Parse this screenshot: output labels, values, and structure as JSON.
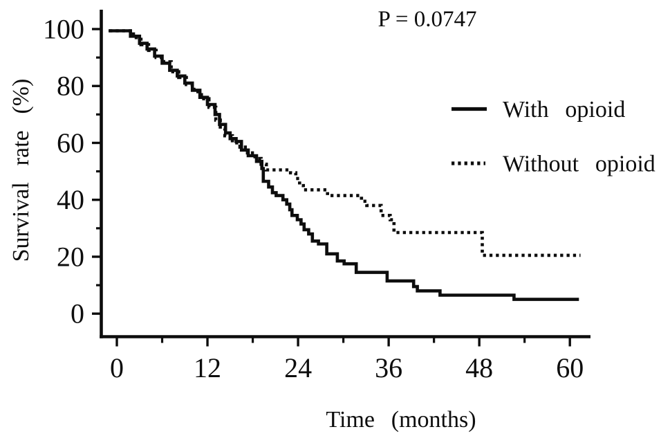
{
  "figure": {
    "p_value": "P = 0.0747",
    "x_axis": {
      "label": "Time (months)"
    },
    "y_axis": {
      "label": "Survival rate (%)"
    },
    "legend": [
      {
        "label": "With opioid",
        "style": "solid"
      },
      {
        "label": "Without opioid",
        "style": "dotted"
      }
    ]
  },
  "chart_data": {
    "type": "line",
    "subtype": "kaplan-meier-step",
    "title": "",
    "annotation": "P = 0.0747",
    "xlabel": "Time (months)",
    "ylabel": "Survival rate (%)",
    "xlim": [
      0,
      62
    ],
    "ylim": [
      0,
      100
    ],
    "x_ticks": [
      0,
      12,
      24,
      36,
      48,
      60
    ],
    "x_minor_ticks": [
      6,
      18,
      30,
      42,
      54
    ],
    "y_ticks": [
      0,
      20,
      40,
      60,
      80,
      100
    ],
    "y_minor_ticks": [
      10,
      30,
      50,
      70,
      90
    ],
    "grid": false,
    "legend_position": "right-inside",
    "line_color": "#0d0d0d",
    "background_color": "#ffffff",
    "series": [
      {
        "name": "With opioid",
        "line_style": "solid",
        "color": "#0d0d0d",
        "steps_month_percent": [
          [
            -1.1,
            99.4
          ],
          [
            1.8,
            97.5
          ],
          [
            3,
            95
          ],
          [
            4,
            93
          ],
          [
            5,
            90.5
          ],
          [
            6,
            88
          ],
          [
            7,
            85.5
          ],
          [
            8,
            83.5
          ],
          [
            9,
            81
          ],
          [
            10,
            78.5
          ],
          [
            11,
            76
          ],
          [
            12,
            73.5
          ],
          [
            13,
            70
          ],
          [
            13.6,
            66.5
          ],
          [
            14.4,
            63.5
          ],
          [
            15,
            61.5
          ],
          [
            15.8,
            60.5
          ],
          [
            16.5,
            57.5
          ],
          [
            17.4,
            55.5
          ],
          [
            18.5,
            53.5
          ],
          [
            19.2,
            51
          ],
          [
            19.4,
            46.5
          ],
          [
            20.1,
            44.5
          ],
          [
            20.6,
            42.5
          ],
          [
            21.1,
            41.5
          ],
          [
            22,
            40
          ],
          [
            22.5,
            38.5
          ],
          [
            22.9,
            36.5
          ],
          [
            23.2,
            34.5
          ],
          [
            23.9,
            33
          ],
          [
            24.4,
            31.5
          ],
          [
            24.8,
            29.5
          ],
          [
            25.4,
            28
          ],
          [
            25.9,
            25.5
          ],
          [
            26.7,
            24.5
          ],
          [
            27.8,
            21
          ],
          [
            29.2,
            18.5
          ],
          [
            30.1,
            17.5
          ],
          [
            31.7,
            14.5
          ],
          [
            35.8,
            11.5
          ],
          [
            39.3,
            9.5
          ],
          [
            39.8,
            8
          ],
          [
            42.8,
            6.5
          ],
          [
            52.6,
            5
          ],
          [
            61.2,
            5
          ]
        ]
      },
      {
        "name": "Without opioid",
        "line_style": "dotted",
        "color": "#0d0d0d",
        "steps_month_percent": [
          [
            -1.0,
            99.4
          ],
          [
            2.2,
            97
          ],
          [
            3.2,
            94.5
          ],
          [
            4.2,
            92.5
          ],
          [
            5.2,
            90
          ],
          [
            6.2,
            88.5
          ],
          [
            7.2,
            85
          ],
          [
            8.2,
            83
          ],
          [
            9.2,
            80.5
          ],
          [
            10.2,
            78
          ],
          [
            11.2,
            75.5
          ],
          [
            12.2,
            72.5
          ],
          [
            13.1,
            68
          ],
          [
            13.7,
            65
          ],
          [
            14.3,
            62.5
          ],
          [
            15.3,
            60
          ],
          [
            16.3,
            58.5
          ],
          [
            17.3,
            56.5
          ],
          [
            18.3,
            54.5
          ],
          [
            19.1,
            52.5
          ],
          [
            19.8,
            50.5
          ],
          [
            23,
            49.5
          ],
          [
            23.7,
            47.5
          ],
          [
            24.2,
            45
          ],
          [
            24.7,
            43.5
          ],
          [
            27.9,
            41.5
          ],
          [
            32.4,
            39.5
          ],
          [
            33.1,
            38
          ],
          [
            35,
            34.5
          ],
          [
            36.2,
            33
          ],
          [
            36.7,
            28.5
          ],
          [
            48.4,
            20.5
          ],
          [
            61.4,
            20.5
          ]
        ]
      }
    ]
  }
}
